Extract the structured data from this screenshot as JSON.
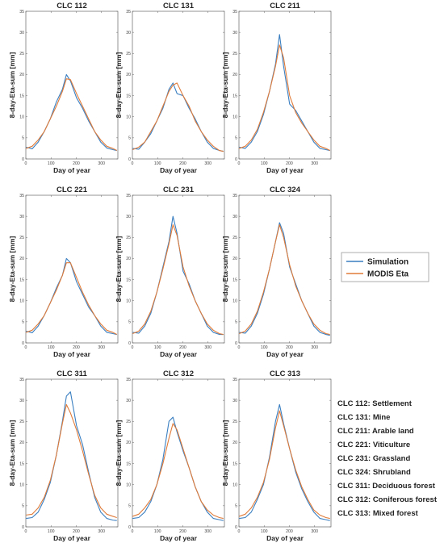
{
  "figure": {
    "legend": [
      {
        "label": "Simulation",
        "color": "#3a7fc1"
      },
      {
        "label": "MODIS Eta",
        "color": "#e07b39"
      }
    ],
    "class_notes": [
      "CLC 112: Settlement",
      "CLC 131: Mine",
      "CLC 211: Arable land",
      "CLC 221: Viticulture",
      "CLC 231: Grassland",
      "CLC 324: Shrubland",
      "CLC 311: Deciduous forest",
      "CLC 312: Coniferous forest",
      "CLC 313: Mixed forest"
    ]
  },
  "chart_data": [
    {
      "type": "line",
      "title": "CLC 112",
      "xlabel": "Day of year",
      "ylabel": "8-day-Eta-sum [mm]",
      "xlim": [
        0,
        365
      ],
      "ylim": [
        0,
        35
      ],
      "xticks": [
        "0",
        "100",
        "200",
        "300"
      ],
      "yticks": [
        "0",
        "5",
        "10",
        "15",
        "20",
        "25",
        "30",
        "35"
      ],
      "x": [
        1,
        25,
        49,
        73,
        97,
        121,
        145,
        161,
        177,
        201,
        225,
        249,
        273,
        297,
        321,
        345,
        361
      ],
      "series": [
        {
          "name": "Simulation",
          "values": [
            2.8,
            2.4,
            4.0,
            6.5,
            9.5,
            13.5,
            16.5,
            20.0,
            18.5,
            14.5,
            12.0,
            9.0,
            6.5,
            4.0,
            2.6,
            2.2,
            2.0
          ]
        },
        {
          "name": "MODIS Eta",
          "values": [
            2.5,
            3.0,
            4.5,
            6.5,
            9.5,
            12.5,
            16.0,
            19.0,
            18.8,
            15.5,
            12.5,
            9.5,
            6.5,
            4.5,
            3.0,
            2.5,
            2.0
          ]
        }
      ]
    },
    {
      "type": "line",
      "title": "CLC 131",
      "xlabel": "Day of year",
      "ylabel": "8-day-Eta-sum [mm]",
      "xlim": [
        0,
        365
      ],
      "ylim": [
        0,
        35
      ],
      "xticks": [
        "0",
        "100",
        "200",
        "300"
      ],
      "yticks": [
        "0",
        "5",
        "10",
        "15",
        "20",
        "25",
        "30",
        "35"
      ],
      "x": [
        1,
        25,
        49,
        73,
        97,
        121,
        145,
        161,
        177,
        201,
        225,
        249,
        273,
        297,
        321,
        345,
        361
      ],
      "series": [
        {
          "name": "Simulation",
          "values": [
            2.5,
            2.3,
            4.0,
            6.0,
            9.0,
            12.0,
            16.5,
            18.0,
            15.5,
            15.0,
            12.0,
            9.5,
            6.5,
            4.0,
            2.5,
            2.0,
            1.8
          ]
        },
        {
          "name": "MODIS Eta",
          "values": [
            2.2,
            2.8,
            4.0,
            6.5,
            9.0,
            12.5,
            16.0,
            17.5,
            18.0,
            15.0,
            12.5,
            9.0,
            6.5,
            4.5,
            3.0,
            2.0,
            1.8
          ]
        }
      ]
    },
    {
      "type": "line",
      "title": "CLC 211",
      "xlabel": "Day of year",
      "ylabel": "8-day-Eta-sum [mm]",
      "xlim": [
        0,
        365
      ],
      "ylim": [
        0,
        35
      ],
      "xticks": [
        "0",
        "100",
        "200",
        "300"
      ],
      "yticks": [
        "0",
        "5",
        "10",
        "15",
        "20",
        "25",
        "30",
        "35"
      ],
      "x": [
        1,
        25,
        49,
        73,
        97,
        121,
        145,
        161,
        177,
        201,
        225,
        249,
        273,
        297,
        321,
        345,
        361
      ],
      "series": [
        {
          "name": "Simulation",
          "values": [
            2.8,
            2.5,
            4.0,
            6.5,
            10.5,
            16.0,
            22.5,
            29.5,
            22.0,
            13.0,
            11.5,
            9.0,
            6.5,
            4.0,
            2.5,
            2.2,
            2.0
          ]
        },
        {
          "name": "MODIS Eta",
          "values": [
            2.5,
            3.0,
            4.5,
            7.0,
            11.0,
            16.0,
            22.0,
            27.0,
            24.0,
            15.0,
            11.0,
            8.5,
            6.5,
            4.5,
            3.0,
            2.5,
            2.0
          ]
        }
      ]
    },
    {
      "type": "line",
      "title": "CLC 221",
      "xlabel": "Day of year",
      "ylabel": "8-day-Eta-sum [mm]",
      "xlim": [
        0,
        365
      ],
      "ylim": [
        0,
        35
      ],
      "xticks": [
        "0",
        "100",
        "200",
        "300"
      ],
      "yticks": [
        "0",
        "5",
        "10",
        "15",
        "20",
        "25",
        "30",
        "35"
      ],
      "x": [
        1,
        25,
        49,
        73,
        97,
        121,
        145,
        161,
        177,
        201,
        225,
        249,
        273,
        297,
        321,
        345,
        361
      ],
      "series": [
        {
          "name": "Simulation",
          "values": [
            2.8,
            2.4,
            4.0,
            6.5,
            9.5,
            13.0,
            16.0,
            20.0,
            19.0,
            14.5,
            11.5,
            8.5,
            6.5,
            4.0,
            2.5,
            2.2,
            2.0
          ]
        },
        {
          "name": "MODIS Eta",
          "values": [
            2.5,
            3.0,
            4.5,
            6.5,
            9.5,
            12.5,
            16.0,
            19.0,
            19.0,
            15.5,
            12.0,
            9.0,
            6.5,
            4.5,
            3.0,
            2.5,
            2.0
          ]
        }
      ]
    },
    {
      "type": "line",
      "title": "CLC 231",
      "xlabel": "Day of year",
      "ylabel": "8-day-Eta-sum [mm]",
      "xlim": [
        0,
        365
      ],
      "ylim": [
        0,
        35
      ],
      "xticks": [
        "0",
        "100",
        "200",
        "300"
      ],
      "yticks": [
        "0",
        "5",
        "10",
        "15",
        "20",
        "25",
        "30",
        "35"
      ],
      "x": [
        1,
        25,
        49,
        73,
        97,
        121,
        145,
        161,
        177,
        201,
        225,
        249,
        273,
        297,
        321,
        345,
        361
      ],
      "series": [
        {
          "name": "Simulation",
          "values": [
            2.5,
            2.3,
            4.0,
            7.0,
            12.0,
            18.0,
            24.0,
            30.0,
            26.0,
            17.0,
            14.0,
            10.0,
            7.0,
            4.0,
            2.5,
            2.0,
            2.0
          ]
        },
        {
          "name": "MODIS Eta",
          "values": [
            2.2,
            2.8,
            4.5,
            7.5,
            12.0,
            17.5,
            23.5,
            28.0,
            25.5,
            18.0,
            13.5,
            10.0,
            7.0,
            4.5,
            3.0,
            2.2,
            2.0
          ]
        }
      ]
    },
    {
      "type": "line",
      "title": "CLC 324",
      "xlabel": "Day of year",
      "ylabel": "8-day-Eta-sum [mm]",
      "xlim": [
        0,
        365
      ],
      "ylim": [
        0,
        35
      ],
      "xticks": [
        "0",
        "100",
        "200",
        "300"
      ],
      "yticks": [
        "0",
        "5",
        "10",
        "15",
        "20",
        "25",
        "30",
        "35"
      ],
      "x": [
        1,
        25,
        49,
        73,
        97,
        121,
        145,
        161,
        177,
        201,
        225,
        249,
        273,
        297,
        321,
        345,
        361
      ],
      "series": [
        {
          "name": "Simulation",
          "values": [
            2.5,
            2.3,
            4.0,
            7.0,
            11.5,
            17.5,
            24.0,
            28.5,
            26.0,
            18.0,
            14.0,
            10.0,
            7.0,
            4.0,
            2.5,
            2.0,
            1.8
          ]
        },
        {
          "name": "MODIS Eta",
          "values": [
            2.2,
            2.8,
            4.5,
            7.5,
            12.0,
            17.5,
            24.0,
            28.0,
            25.0,
            18.5,
            13.5,
            10.0,
            7.0,
            4.5,
            3.0,
            2.2,
            2.0
          ]
        }
      ]
    },
    {
      "type": "line",
      "title": "CLC 311",
      "xlabel": "Day of year",
      "ylabel": "8-day-Eta-sum [mm]",
      "xlim": [
        0,
        365
      ],
      "ylim": [
        0,
        35
      ],
      "xticks": [
        "0",
        "100",
        "200",
        "300"
      ],
      "yticks": [
        "0",
        "5",
        "10",
        "15",
        "20",
        "25",
        "30",
        "35"
      ],
      "x": [
        1,
        25,
        49,
        73,
        97,
        121,
        145,
        161,
        177,
        201,
        225,
        249,
        273,
        297,
        321,
        345,
        361
      ],
      "series": [
        {
          "name": "Simulation",
          "values": [
            2.0,
            2.2,
            3.5,
            6.5,
            10.5,
            17.0,
            25.0,
            31.0,
            32.0,
            24.0,
            19.5,
            13.0,
            7.0,
            3.5,
            2.0,
            1.6,
            1.5
          ]
        },
        {
          "name": "MODIS Eta",
          "values": [
            2.8,
            3.0,
            4.5,
            7.0,
            11.0,
            17.0,
            24.5,
            29.0,
            27.0,
            23.0,
            18.0,
            12.5,
            7.5,
            4.5,
            3.0,
            2.5,
            2.2
          ]
        }
      ]
    },
    {
      "type": "line",
      "title": "CLC 312",
      "xlabel": "Day of year",
      "ylabel": "8-day-Eta-sum [mm]",
      "xlim": [
        0,
        365
      ],
      "ylim": [
        0,
        35
      ],
      "xticks": [
        "0",
        "100",
        "200",
        "300"
      ],
      "yticks": [
        "0",
        "5",
        "10",
        "15",
        "20",
        "25",
        "30",
        "35"
      ],
      "x": [
        1,
        25,
        49,
        73,
        97,
        121,
        145,
        161,
        177,
        201,
        225,
        249,
        273,
        297,
        321,
        345,
        361
      ],
      "series": [
        {
          "name": "Simulation",
          "values": [
            2.0,
            2.2,
            3.5,
            6.0,
            10.0,
            16.0,
            25.0,
            26.0,
            22.5,
            18.0,
            14.0,
            9.5,
            6.0,
            3.5,
            2.0,
            1.7,
            1.5
          ]
        },
        {
          "name": "MODIS Eta",
          "values": [
            2.5,
            3.0,
            4.5,
            6.5,
            10.0,
            15.0,
            21.0,
            24.5,
            23.0,
            18.5,
            14.0,
            9.5,
            6.0,
            4.0,
            2.8,
            2.2,
            2.0
          ]
        }
      ]
    },
    {
      "type": "line",
      "title": "CLC 313",
      "xlabel": "Day of year",
      "ylabel": "8-day-Eta-sum [mm]",
      "xlim": [
        0,
        365
      ],
      "ylim": [
        0,
        35
      ],
      "xticks": [
        "0",
        "100",
        "200",
        "300"
      ],
      "yticks": [
        "0",
        "5",
        "10",
        "15",
        "20",
        "25",
        "30",
        "35"
      ],
      "x": [
        1,
        25,
        49,
        73,
        97,
        121,
        145,
        161,
        177,
        201,
        225,
        249,
        273,
        297,
        321,
        345,
        361
      ],
      "series": [
        {
          "name": "Simulation",
          "values": [
            2.0,
            2.2,
            3.5,
            6.5,
            10.0,
            16.5,
            25.0,
            29.0,
            24.5,
            18.5,
            13.0,
            9.0,
            6.0,
            3.5,
            2.0,
            1.7,
            1.5
          ]
        },
        {
          "name": "MODIS Eta",
          "values": [
            2.5,
            3.0,
            4.5,
            7.0,
            10.5,
            16.0,
            23.5,
            27.5,
            24.0,
            18.5,
            13.5,
            9.5,
            6.5,
            4.0,
            2.8,
            2.2,
            2.0
          ]
        }
      ]
    }
  ]
}
